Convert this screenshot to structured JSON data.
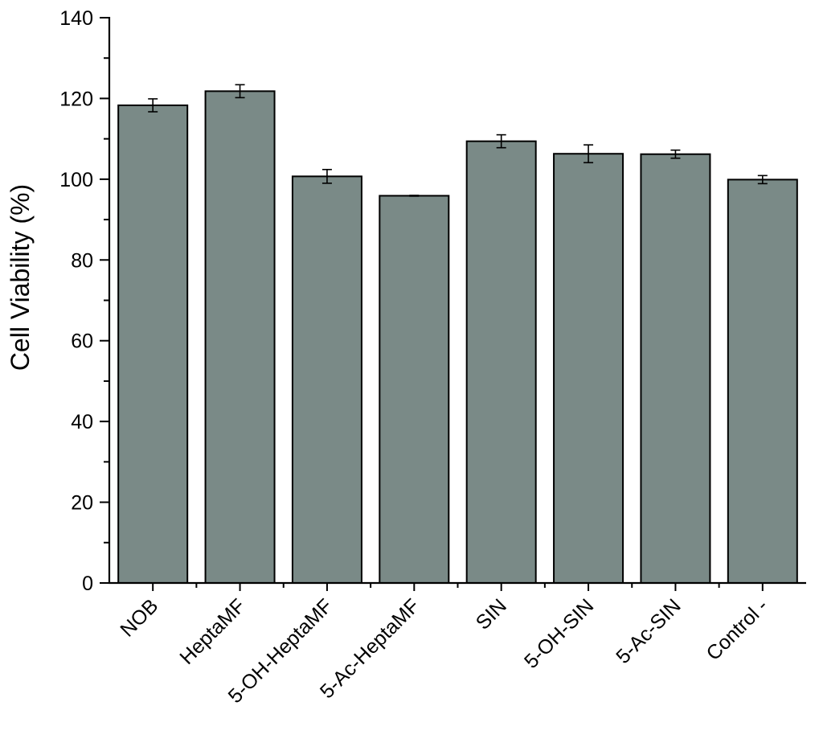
{
  "chart_data": {
    "type": "bar",
    "title": "",
    "xlabel": "",
    "ylabel": "Cell Viability (%)",
    "ylim": [
      0,
      140
    ],
    "yticks": [
      0,
      20,
      40,
      60,
      80,
      100,
      120,
      140
    ],
    "grid": false,
    "bar_color": "#7a8a87",
    "categories": [
      "NOB",
      "HeptaMF",
      "5-OH-HeptaMF",
      "5-Ac-HeptaMF",
      "SIN",
      "5-OH-SIN",
      "5-Ac-SIN",
      "Control -"
    ],
    "values": [
      118.3,
      121.8,
      100.7,
      95.9,
      109.4,
      106.3,
      106.2,
      99.9
    ],
    "errors": [
      1.6,
      1.6,
      1.7,
      0.1,
      1.6,
      2.2,
      1.0,
      1.0
    ]
  }
}
